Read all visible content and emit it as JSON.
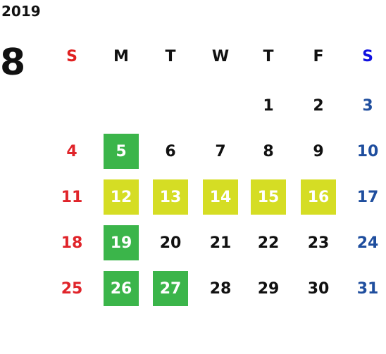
{
  "calendar": {
    "year": "2019",
    "month": "8",
    "weekdays": [
      "S",
      "M",
      "T",
      "W",
      "T",
      "F",
      "S"
    ],
    "weekday_colors": [
      "#e02020",
      "#111111",
      "#111111",
      "#111111",
      "#111111",
      "#111111",
      "#1010e0"
    ],
    "day_colors": [
      "#e0242a",
      "#111111",
      "#111111",
      "#111111",
      "#111111",
      "#111111",
      "#1f4e9e"
    ],
    "marked_text_color": "#ffffff",
    "weeks": [
      [
        null,
        null,
        null,
        null,
        1,
        2,
        3
      ],
      [
        4,
        {
          "day": 5,
          "fill": "#3bb54a"
        },
        6,
        7,
        8,
        9,
        10
      ],
      [
        11,
        {
          "day": 12,
          "fill": "#d5dd24"
        },
        {
          "day": 13,
          "fill": "#d5dd24"
        },
        {
          "day": 14,
          "fill": "#d5dd24"
        },
        {
          "day": 15,
          "fill": "#d5dd24"
        },
        {
          "day": 16,
          "fill": "#d5dd24"
        },
        17
      ],
      [
        18,
        {
          "day": 19,
          "fill": "#3bb54a"
        },
        20,
        21,
        22,
        23,
        24
      ],
      [
        25,
        {
          "day": 26,
          "fill": "#3bb54a"
        },
        {
          "day": 27,
          "fill": "#3bb54a"
        },
        28,
        29,
        30,
        31
      ]
    ]
  }
}
